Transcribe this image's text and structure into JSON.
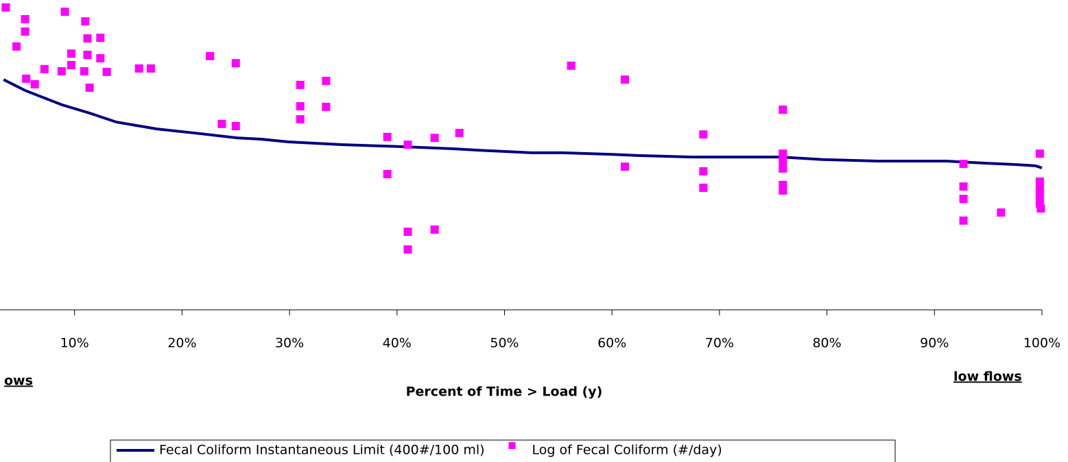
{
  "chart_data": {
    "type": "scatter",
    "xlabel": "Percent of Time > Load (y)",
    "annotations": [
      {
        "text": "ows"
      },
      {
        "text": "low flows"
      }
    ],
    "xlim": [
      0,
      100
    ],
    "ylim": [
      0,
      100
    ],
    "xticks": [
      {
        "value": 10,
        "label": "10%"
      },
      {
        "value": 20,
        "label": "20%"
      },
      {
        "value": 30,
        "label": "30%"
      },
      {
        "value": 40,
        "label": "40%"
      },
      {
        "value": 50,
        "label": "50%"
      },
      {
        "value": 60,
        "label": "60%"
      },
      {
        "value": 70,
        "label": "70%"
      },
      {
        "value": 80,
        "label": "80%"
      },
      {
        "value": 90,
        "label": "90%"
      },
      {
        "value": 100,
        "label": "100%"
      }
    ],
    "series": [
      {
        "name": "Fecal Coliform Instantaneous Limit (400#/100 ml)",
        "type": "line",
        "color": "#000080",
        "x": [
          3.4,
          5.4,
          8.8,
          11.4,
          13.9,
          17.6,
          21.6,
          25.1,
          27.3,
          29.9,
          35.0,
          40.1,
          45.2,
          47.7,
          52.5,
          55.4,
          59.9,
          62.4,
          67.5,
          75.8,
          79.6,
          84.7,
          91.1,
          95.0,
          97.5,
          99.4,
          100
        ],
        "values": [
          74.3,
          70.8,
          66.2,
          63.5,
          60.6,
          58.4,
          56.9,
          55.5,
          55.1,
          54.2,
          53.3,
          52.7,
          52.0,
          51.5,
          50.7,
          50.7,
          50.2,
          49.8,
          49.3,
          49.3,
          48.5,
          48.0,
          48.0,
          47.3,
          46.9,
          46.5,
          45.8
        ]
      },
      {
        "name": "Log of Fecal Coliform (#/day)",
        "type": "scatter",
        "color": "#ff00ff",
        "x": [
          3.6,
          5.4,
          5.4,
          4.6,
          9.1,
          11.0,
          11.2,
          12.4,
          9.7,
          11.2,
          12.4,
          9.7,
          8.8,
          10.9,
          13.0,
          7.2,
          5.5,
          6.3,
          11.4,
          16.0,
          17.1,
          22.6,
          25.0,
          23.7,
          25.0,
          31.0,
          31.0,
          31.0,
          33.4,
          33.4,
          39.1,
          39.1,
          41.0,
          41.0,
          41.0,
          43.5,
          43.5,
          45.8,
          56.2,
          61.2,
          61.2,
          68.5,
          68.5,
          68.5,
          75.9,
          75.9,
          75.9,
          75.9,
          75.9,
          75.9,
          92.7,
          92.7,
          92.7,
          92.7,
          96.2,
          99.8,
          99.8,
          99.8,
          99.8,
          99.8,
          99.9
        ],
        "values": [
          97.6,
          93.8,
          89.8,
          85.0,
          96.2,
          93.1,
          87.6,
          87.8,
          82.7,
          82.3,
          81.2,
          79.0,
          77.0,
          77.0,
          76.8,
          77.7,
          74.6,
          72.8,
          71.7,
          77.9,
          77.9,
          81.9,
          79.6,
          60.0,
          59.3,
          72.6,
          65.7,
          61.5,
          73.9,
          65.5,
          55.8,
          43.8,
          53.3,
          25.2,
          19.5,
          55.5,
          25.9,
          57.1,
          78.8,
          74.3,
          46.2,
          56.6,
          44.7,
          39.4,
          64.6,
          50.4,
          48.0,
          45.6,
          40.3,
          38.5,
          47.1,
          39.8,
          35.8,
          28.8,
          31.4,
          50.4,
          41.4,
          39.2,
          36.9,
          34.3,
          32.7
        ]
      }
    ]
  }
}
